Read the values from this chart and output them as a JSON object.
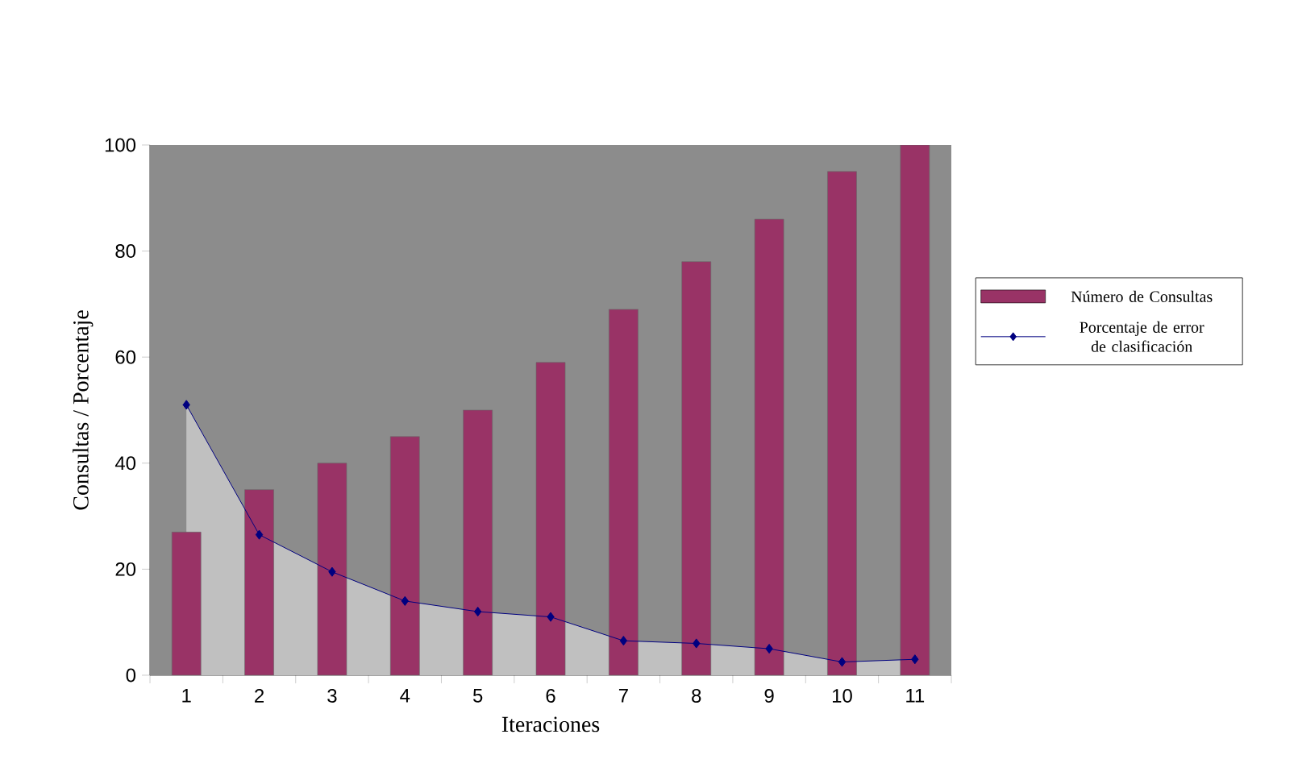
{
  "chart_data": {
    "type": "bar",
    "xlabel": "Iteraciones",
    "ylabel": "Consultas / Porcentaje",
    "categories": [
      "1",
      "2",
      "3",
      "4",
      "5",
      "6",
      "7",
      "8",
      "9",
      "10",
      "11"
    ],
    "series": [
      {
        "name": "Número de Consultas",
        "color": "#993366",
        "values": [
          27,
          35,
          40,
          45,
          50,
          59,
          69,
          78,
          86,
          95,
          100
        ]
      },
      {
        "name": "Porcentaje de error de clasificación",
        "type": "area",
        "color": "#000080",
        "values": [
          51,
          26.5,
          19.5,
          14,
          12,
          11,
          6.5,
          6,
          5,
          2.5,
          3
        ]
      }
    ],
    "marker": "diamond",
    "ylim": [
      0,
      100
    ],
    "yticks": [
      0,
      20,
      40,
      60,
      80,
      100
    ],
    "legend": "right",
    "grid": false
  }
}
